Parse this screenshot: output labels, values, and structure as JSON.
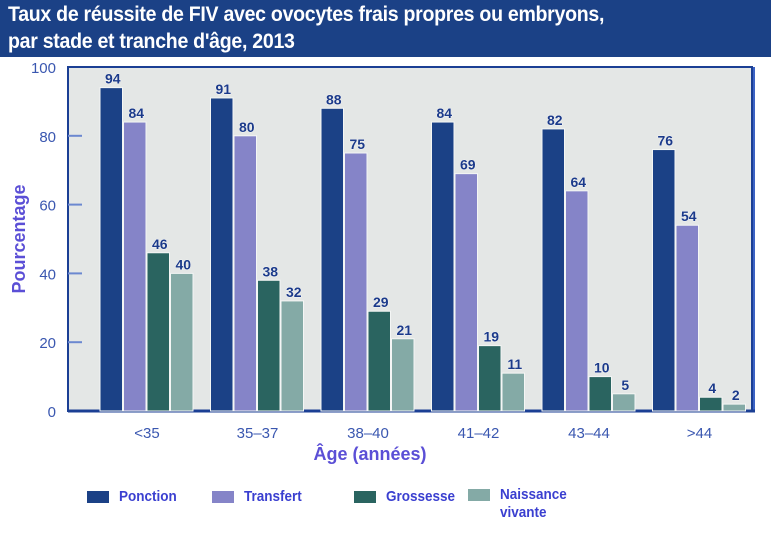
{
  "title_lines": [
    "Taux de réussite de FIV avec ovocytes frais propres ou embryons,",
    "par stade et tranche d'âge, 2013"
  ],
  "colors": {
    "title_bg": "#1b4186",
    "plot_bg": "#e4e7e6",
    "axis": "#1b3f94",
    "axis_label": "#5b4fd6",
    "tick_label": "#3a57b0",
    "value_label": "#1b3a8a"
  },
  "chart_data": {
    "type": "bar",
    "title": "Taux de réussite de FIV avec ovocytes frais propres ou embryons, par stade et tranche d'âge, 2013",
    "xlabel": "Âge (années)",
    "ylabel": "Pourcentage",
    "ylim": [
      0,
      100
    ],
    "yticks": [
      0,
      20,
      40,
      60,
      80,
      100
    ],
    "grid": false,
    "legend_position": "bottom",
    "categories": [
      "<35",
      "35–37",
      "38–40",
      "41–42",
      "43–44",
      ">44"
    ],
    "series": [
      {
        "name": "Ponction",
        "color": "#1b4186",
        "values": [
          94,
          91,
          88,
          84,
          82,
          76
        ]
      },
      {
        "name": "Transfert",
        "color": "#8584c8",
        "values": [
          84,
          80,
          75,
          69,
          64,
          54
        ]
      },
      {
        "name": "Grossesse",
        "color": "#2a6460",
        "values": [
          46,
          38,
          29,
          19,
          10,
          4
        ]
      },
      {
        "name": "Naissance vivante",
        "color": "#84aaa6",
        "values": [
          40,
          32,
          21,
          11,
          5,
          2
        ]
      }
    ]
  },
  "legend": [
    {
      "label_lines": [
        "Ponction"
      ],
      "color": "#1b4186"
    },
    {
      "label_lines": [
        "Transfert"
      ],
      "color": "#8584c8"
    },
    {
      "label_lines": [
        "Grossesse"
      ],
      "color": "#2a6460"
    },
    {
      "label_lines": [
        "Naissance",
        "vivante"
      ],
      "color": "#84aaa6"
    }
  ]
}
